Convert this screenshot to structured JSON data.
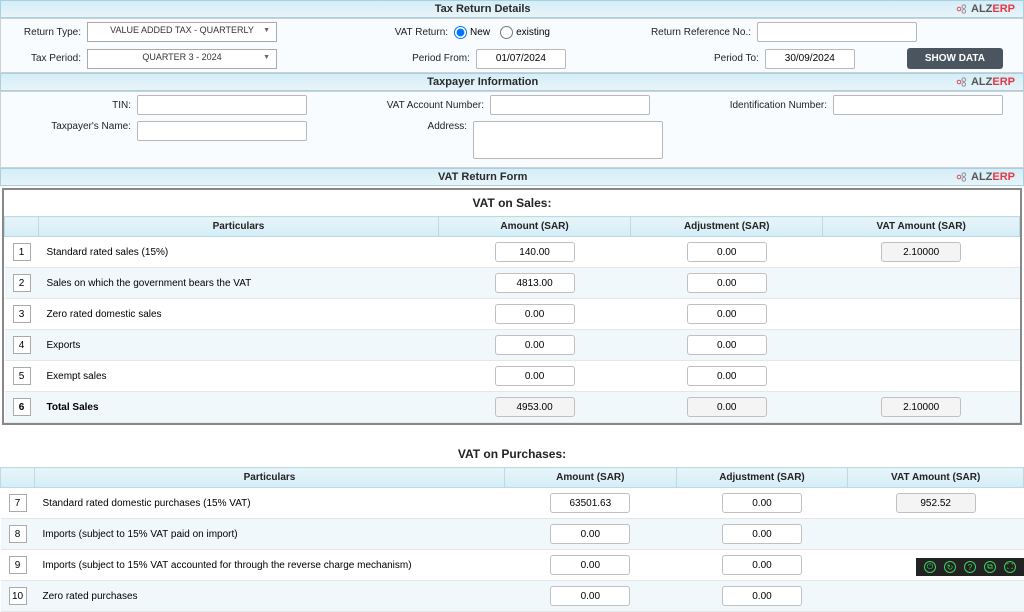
{
  "brand": {
    "name": "ALZERP",
    "name_prefix": "ALZ",
    "name_suffix": "ERP"
  },
  "section1": {
    "title": "Tax Return Details",
    "return_type_lbl": "Return Type:",
    "return_type_val": "VALUE ADDED TAX - QUARTERLY",
    "vat_return_lbl": "VAT Return:",
    "radio_new": "New",
    "radio_existing": "existing",
    "ref_no_lbl": "Return Reference No.:",
    "ref_no_val": "",
    "tax_period_lbl": "Tax Period:",
    "tax_period_val": "QUARTER 3 - 2024",
    "period_from_lbl": "Period From:",
    "period_from_val": "01/07/2024",
    "period_to_lbl": "Period To:",
    "period_to_val": "30/09/2024",
    "show_data_btn": "SHOW DATA"
  },
  "section2": {
    "title": "Taxpayer Information",
    "tin_lbl": "TIN:",
    "vat_acct_lbl": "VAT Account Number:",
    "id_no_lbl": "Identification Number:",
    "name_lbl": "Taxpayer's Name:",
    "addr_lbl": "Address:"
  },
  "section3": {
    "title": "VAT Return Form",
    "sales_title": "VAT on Sales:",
    "purchases_title": "VAT on Purchases:",
    "col_particulars": "Particulars",
    "col_amount": "Amount (SAR)",
    "col_adjustment": "Adjustment (SAR)",
    "col_vat": "VAT Amount (SAR)",
    "sales_rows": [
      {
        "n": "1",
        "p": "Standard rated sales (15%)",
        "a": "140.00",
        "j": "0.00",
        "v": "2.10000"
      },
      {
        "n": "2",
        "p": "Sales on which the government bears the VAT",
        "a": "4813.00",
        "j": "0.00",
        "v": ""
      },
      {
        "n": "3",
        "p": "Zero rated domestic sales",
        "a": "0.00",
        "j": "0.00",
        "v": ""
      },
      {
        "n": "4",
        "p": "Exports",
        "a": "0.00",
        "j": "0.00",
        "v": ""
      },
      {
        "n": "5",
        "p": "Exempt sales",
        "a": "0.00",
        "j": "0.00",
        "v": ""
      },
      {
        "n": "6",
        "p": "Total Sales",
        "a": "4953.00",
        "j": "0.00",
        "v": "2.10000",
        "bold": true
      }
    ],
    "purchase_rows": [
      {
        "n": "7",
        "p": "Standard rated domestic purchases (15% VAT)",
        "a": "63501.63",
        "j": "0.00",
        "v": "952.52"
      },
      {
        "n": "8",
        "p": "Imports (subject to 15% VAT paid on import)",
        "a": "0.00",
        "j": "0.00",
        "v": ""
      },
      {
        "n": "9",
        "p": "Imports (subject to 15% VAT accounted for through the reverse charge mechanism)",
        "a": "0.00",
        "j": "0.00",
        "v": ""
      },
      {
        "n": "10",
        "p": "Zero rated purchases",
        "a": "0.00",
        "j": "0.00",
        "v": ""
      }
    ]
  },
  "colors": {
    "header_bg": "#d4edf7",
    "accent": "#3a8ec9",
    "btn": "#4a5560"
  }
}
